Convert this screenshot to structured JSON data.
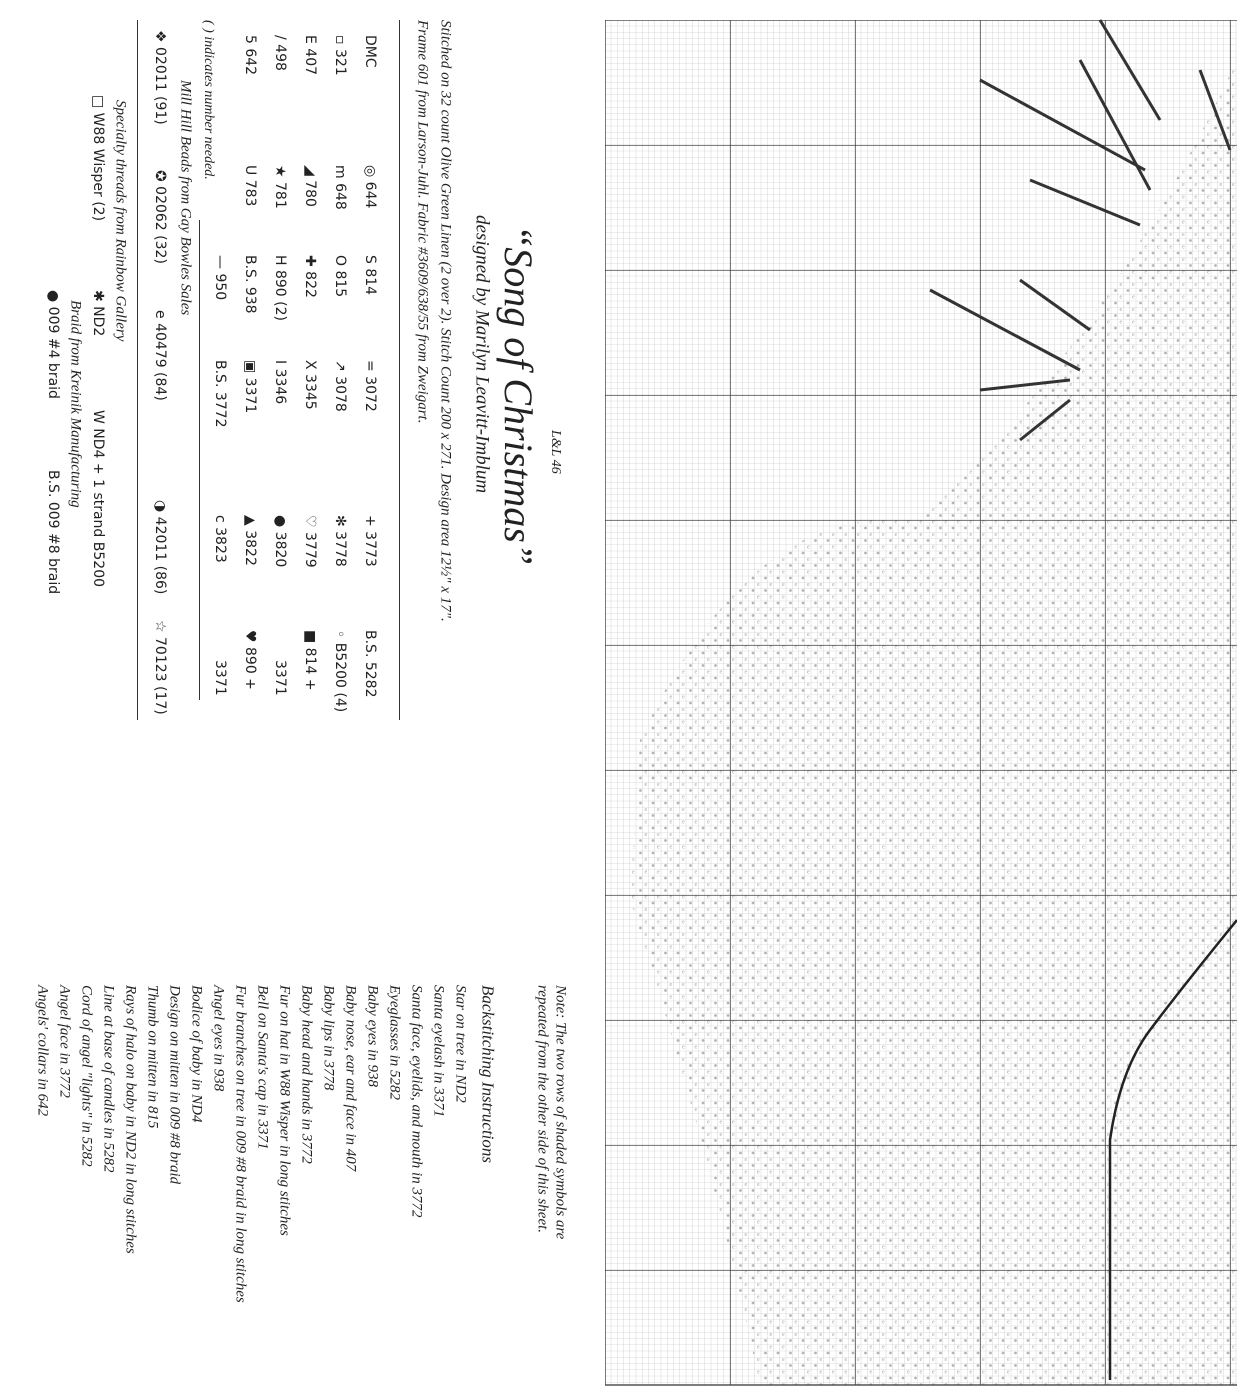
{
  "header": {
    "code": "L&L 46",
    "title": "“Song of Christmas”",
    "designer": "designed by Marilyn Leavitt-Imblum",
    "fabric": [
      "Stitched on 32 count Olive Green Linen (2 over 2). Stitch Count 200 x 271. Design area 12½\" x 17\".",
      "Frame 601 from Larson-Juhl. Fabric #3609/638/55 from Zweigart."
    ]
  },
  "key": {
    "rows": [
      [
        "DMC",
        "◎ 644",
        "S 814",
        "= 3072",
        "+ 3773",
        "B.S. 5282"
      ],
      [
        "▫ 321",
        "m 648",
        "O 815",
        "↗ 3078",
        "✻ 3778",
        "◦ B5200 (4)"
      ],
      [
        "E 407",
        "◢ 780",
        "✚ 822",
        "X 3345",
        "♡ 3779",
        "■ 814 +"
      ],
      [
        "/ 498",
        "★ 781",
        "H 890 (2)",
        "I 3346",
        "● 3820",
        "3371"
      ],
      [
        "5 642",
        "U 783",
        "B.S. 938",
        "▣ 3371",
        "▲ 3822",
        "♥ 890 +"
      ],
      [
        "— 950",
        "B.S. 3772",
        "c 3823",
        "3371"
      ]
    ],
    "note": "( ) indicates number needed."
  },
  "beads": {
    "heading": "Mill Hill Beads from Gay Bowles Sales",
    "items": [
      "❖ 02011 (91)",
      "✪ 02062 (32)",
      "e 40479 (84)",
      "◑ 42011 (86)",
      "☆ 70123 (17)"
    ]
  },
  "specialty": {
    "heading": "Specialty threads from Rainbow Gallery",
    "items": [
      "□ W88 Wisper (2)",
      "✱ ND2",
      "W ND4 + 1 strand B5200"
    ]
  },
  "braid": {
    "heading": "Braid from Kreinik Manufacturing",
    "items": [
      "● 009 #4 braid",
      "B.S. 009 #8 braid"
    ]
  },
  "note": [
    "Note: The two rows of shaded symbols are",
    "repeated from the other side of this sheet."
  ],
  "backstitching": {
    "title": "Backstitching Instructions",
    "items": [
      "Star on tree in ND2",
      "Santa eyelash in 3371",
      "Santa face, eyelids, and mouth in 3772",
      "Eyeglasses in 5282",
      "Baby eyes in 938",
      "Baby nose, ear and face in 407",
      "Baby lips in 3778",
      "Baby head and hands in 3772",
      "Fur on hat in W88 Wisper in long stitches",
      "Bell on Santa's cap in 3371",
      "Fur branches on tree in 009 #8 braid in long stitches",
      "Angel eyes in 938",
      "Bodice of baby in ND4",
      "Design on mitten in 009 #8 braid",
      "Thumb on mitten in 815",
      "Rays of halo on baby in ND2 in long stitches",
      "Line at base of candles in 5282",
      "Cord of angel \"lights\" in 5282",
      "Angel face in 3772",
      "Angels' collars in 642"
    ]
  }
}
